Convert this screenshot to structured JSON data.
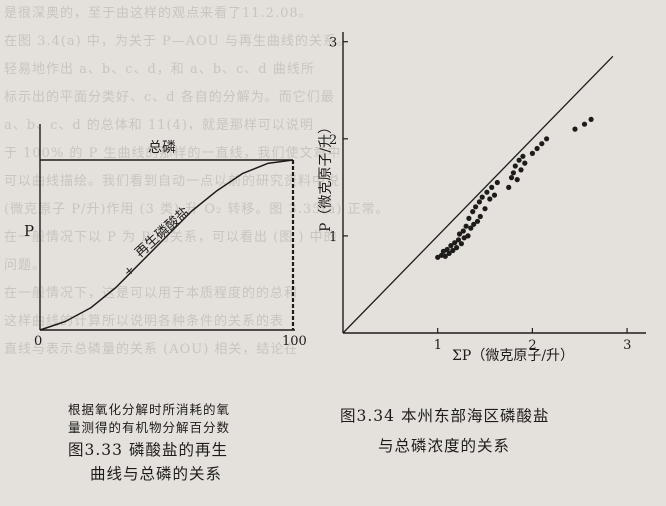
{
  "background_lines": [
    "是很深奥的，至于由这样的观点来看了11.2.08。",
    "在图 3.4(a) 中，为关于 P—AOU 与再生曲线的关系。",
    "轻易地作出 a、b、c、d，和 a、b、c、d 曲线所",
    "标示出的平面分类好、c、d 各自的分解为。而它们最",
    "a、b、c、d 的总体和 11(4)，就是那样可以说明",
    "于 100% 的 P 生曲线的那样的一直线，我们使文章中",
    "可以曲线描绘。我们看到自动一点以前的研究资料中说",
    "(微克原子 P/升)作用 (3 类) 升 O₂ 转移。图 3.35(a) 正常。",
    "在一般情况下以 P 为 P 的关系，可以看出  (图  ) 中的",
    "问题。",
    "在一般情况下，这是可以用于本质程度的的总和",
    "这样曲线的计算所以说明各种条件的关系的表",
    "直线与表示总磷量的关系 (AOU) 相关，结论在"
  ],
  "figure_3_33": {
    "y_axis_label": "P",
    "x_tick_0": "0",
    "x_tick_100": "100",
    "total_phosphorus_label": "总磷",
    "regenerated_phosphate_label": "再生磷酸盐",
    "plus_sign": "+",
    "caption_note_line1": "根据氧化分解时所消耗的氧",
    "caption_note_line2": "量测得的有机物分解百分数",
    "caption_title_line1": "图3.33  磷酸盐的再生",
    "caption_title_line2": "曲线与总磷的关系",
    "chart_data": {
      "type": "line",
      "xlim": [
        0,
        100
      ],
      "x_ticks": [
        "0",
        "100"
      ],
      "ylabel": "P",
      "series": [
        {
          "name": "总磷",
          "x": [
            0,
            100
          ],
          "y": [
            1.0,
            1.0
          ]
        },
        {
          "name": "再生磷酸盐",
          "x": [
            0,
            10,
            20,
            30,
            40,
            50,
            60,
            70,
            80,
            90,
            100
          ],
          "y": [
            0.0,
            0.05,
            0.13,
            0.25,
            0.4,
            0.55,
            0.7,
            0.82,
            0.92,
            0.98,
            1.0
          ]
        }
      ]
    }
  },
  "figure_3_34": {
    "y_axis_label": "P（微克原子/升）",
    "x_axis_label": "ΣP（微克原子/升）",
    "caption_title_line1": "图3.34  本州东部海区磷酸盐",
    "caption_title_line2": "与总磷浓度的关系",
    "chart_data": {
      "type": "scatter",
      "x_ticks": [
        "1",
        "2",
        "3"
      ],
      "y_ticks": [
        "1",
        "2",
        "3"
      ],
      "xlim": [
        0,
        3.2
      ],
      "ylim": [
        0,
        3.1
      ],
      "reference_line": {
        "x": [
          0,
          3.2
        ],
        "y": [
          0,
          3.2
        ]
      },
      "points": [
        [
          1.0,
          0.78
        ],
        [
          1.04,
          0.8
        ],
        [
          1.06,
          0.84
        ],
        [
          1.08,
          0.79
        ],
        [
          1.1,
          0.86
        ],
        [
          1.12,
          0.82
        ],
        [
          1.14,
          0.9
        ],
        [
          1.16,
          0.85
        ],
        [
          1.18,
          0.93
        ],
        [
          1.2,
          0.88
        ],
        [
          1.22,
          0.96
        ],
        [
          1.23,
          1.02
        ],
        [
          1.25,
          0.92
        ],
        [
          1.27,
          1.05
        ],
        [
          1.28,
          0.98
        ],
        [
          1.3,
          1.1
        ],
        [
          1.32,
          1.0
        ],
        [
          1.33,
          1.18
        ],
        [
          1.35,
          1.08
        ],
        [
          1.37,
          1.25
        ],
        [
          1.38,
          1.12
        ],
        [
          1.4,
          1.3
        ],
        [
          1.42,
          1.15
        ],
        [
          1.44,
          1.35
        ],
        [
          1.45,
          1.2
        ],
        [
          1.47,
          1.4
        ],
        [
          1.5,
          1.28
        ],
        [
          1.52,
          1.45
        ],
        [
          1.55,
          1.38
        ],
        [
          1.57,
          1.5
        ],
        [
          1.6,
          1.42
        ],
        [
          1.63,
          1.55
        ],
        [
          1.75,
          1.5
        ],
        [
          1.78,
          1.6
        ],
        [
          1.8,
          1.65
        ],
        [
          1.82,
          1.72
        ],
        [
          1.84,
          1.58
        ],
        [
          1.86,
          1.78
        ],
        [
          1.88,
          1.68
        ],
        [
          1.9,
          1.82
        ],
        [
          1.92,
          1.75
        ],
        [
          2.0,
          1.85
        ],
        [
          2.05,
          1.9
        ],
        [
          2.1,
          1.95
        ],
        [
          2.15,
          2.0
        ],
        [
          2.45,
          2.1
        ],
        [
          2.55,
          2.15
        ],
        [
          2.62,
          2.2
        ]
      ]
    }
  }
}
